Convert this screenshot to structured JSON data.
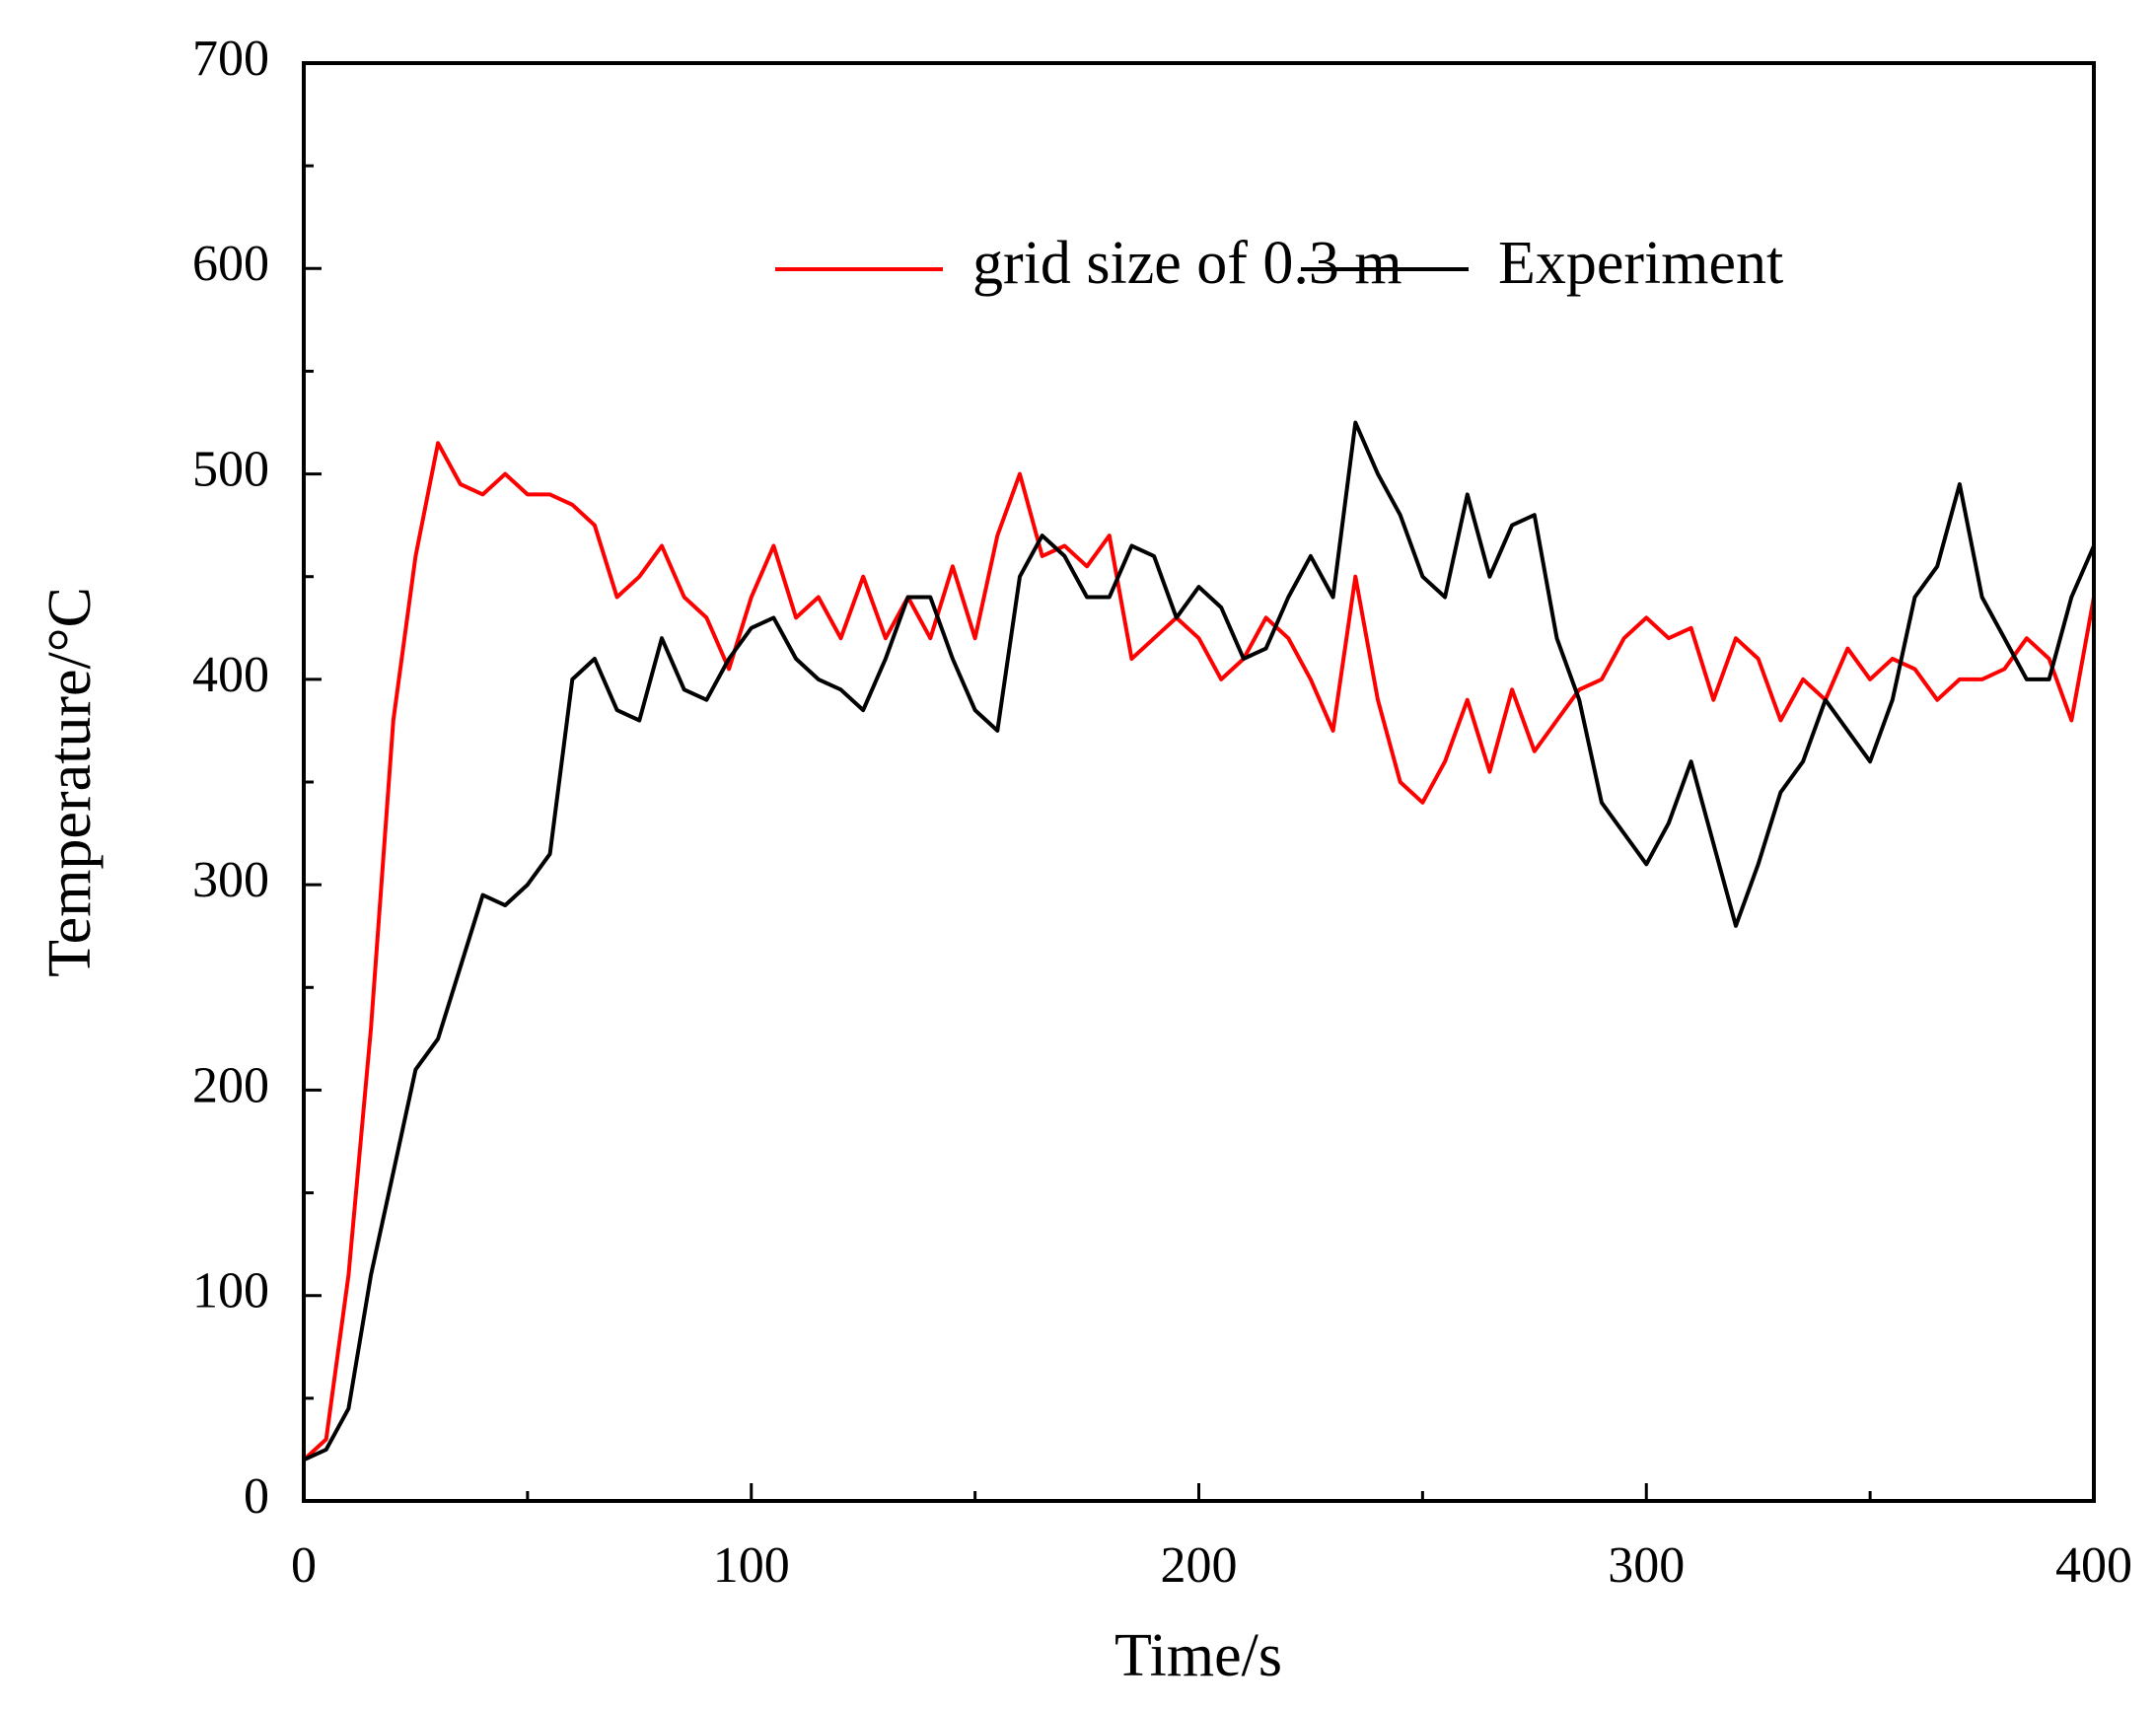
{
  "chart_data": {
    "type": "line",
    "xlabel": "Time/s",
    "ylabel": "Temperature/°C",
    "x": [
      0,
      5,
      10,
      15,
      20,
      25,
      30,
      35,
      40,
      45,
      50,
      55,
      60,
      65,
      70,
      75,
      80,
      85,
      90,
      95,
      100,
      105,
      110,
      115,
      120,
      125,
      130,
      135,
      140,
      145,
      150,
      155,
      160,
      165,
      170,
      175,
      180,
      185,
      190,
      195,
      200,
      205,
      210,
      215,
      220,
      225,
      230,
      235,
      240,
      245,
      250,
      255,
      260,
      265,
      270,
      275,
      280,
      285,
      290,
      295,
      300,
      305,
      310,
      315,
      320,
      325,
      330,
      335,
      340,
      345,
      350,
      355,
      360,
      365,
      370,
      375,
      380,
      385,
      390,
      395,
      400
    ],
    "series": [
      {
        "name": "grid size of 0.3 m",
        "color": "#ff0000",
        "values": [
          20,
          30,
          110,
          230,
          380,
          460,
          515,
          495,
          490,
          500,
          490,
          490,
          485,
          475,
          440,
          450,
          465,
          440,
          430,
          405,
          440,
          465,
          430,
          440,
          420,
          450,
          420,
          440,
          420,
          455,
          420,
          470,
          500,
          460,
          465,
          455,
          470,
          410,
          420,
          430,
          420,
          400,
          410,
          430,
          420,
          400,
          375,
          450,
          390,
          350,
          340,
          360,
          390,
          355,
          395,
          365,
          380,
          395,
          400,
          420,
          430,
          420,
          425,
          390,
          420,
          410,
          380,
          400,
          390,
          415,
          400,
          410,
          405,
          390,
          400,
          400,
          405,
          420,
          410,
          380,
          440
        ]
      },
      {
        "name": "Experiment",
        "color": "#000000",
        "values": [
          20,
          25,
          45,
          110,
          160,
          210,
          225,
          260,
          295,
          290,
          300,
          315,
          400,
          410,
          385,
          380,
          420,
          395,
          390,
          410,
          425,
          430,
          410,
          400,
          395,
          385,
          410,
          440,
          440,
          410,
          385,
          375,
          450,
          470,
          460,
          440,
          440,
          465,
          460,
          430,
          445,
          435,
          410,
          415,
          440,
          460,
          440,
          525,
          500,
          480,
          450,
          440,
          490,
          450,
          475,
          480,
          420,
          390,
          340,
          325,
          310,
          330,
          360,
          320,
          280,
          310,
          345,
          360,
          390,
          375,
          360,
          390,
          440,
          455,
          495,
          440,
          420,
          400,
          400,
          440,
          465
        ]
      }
    ],
    "xlim": [
      0,
      400
    ],
    "xticks": [
      0,
      100,
      200,
      300,
      400
    ],
    "xminorticks": [
      50,
      150,
      250,
      350
    ],
    "ylim": [
      0,
      700
    ],
    "yticks": [
      0,
      100,
      200,
      300,
      400,
      500,
      600,
      700
    ],
    "yminorticks": [
      50,
      150,
      250,
      350,
      450,
      550,
      650
    ],
    "legend": "top"
  }
}
